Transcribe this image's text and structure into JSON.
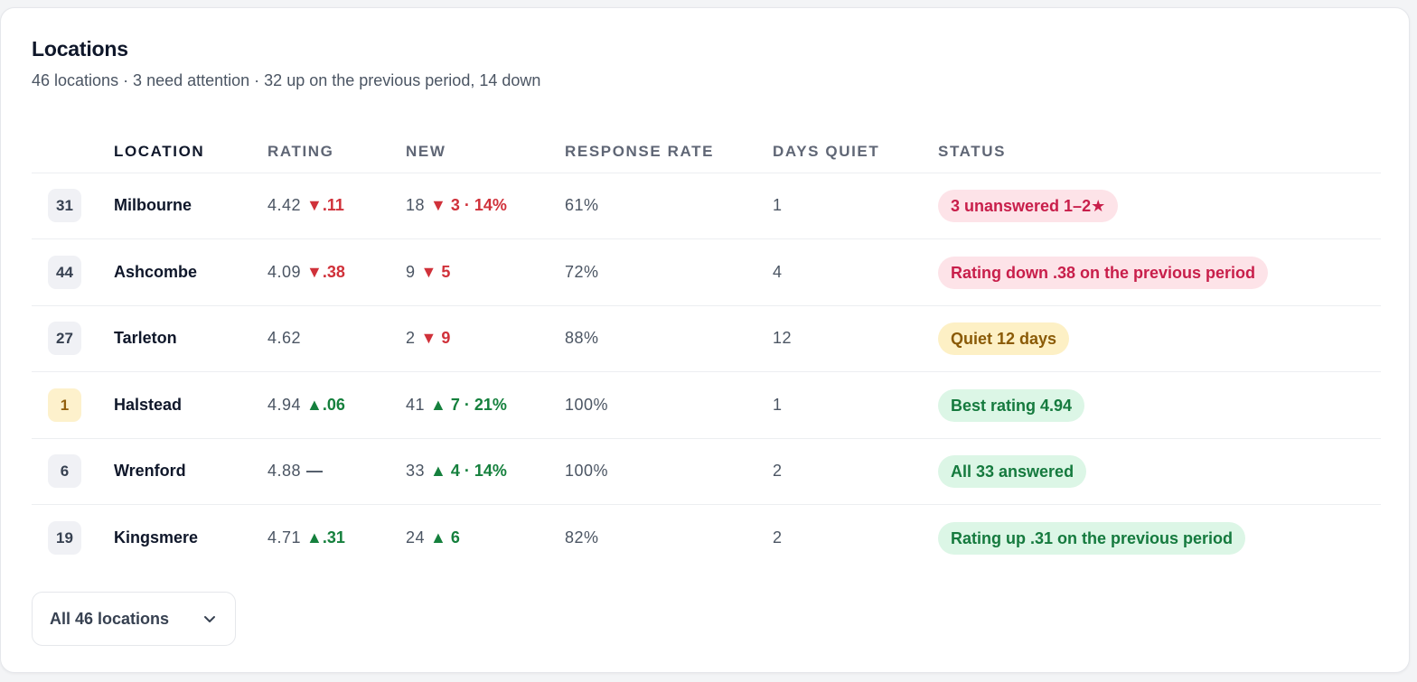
{
  "header": {
    "title": "Locations",
    "subtitle": "46 locations · 3 need attention · 32 up on the previous period, 14 down"
  },
  "columns": [
    "LOCATION",
    "RATING",
    "NEW",
    "RESPONSE RATE",
    "DAYS QUIET",
    "STATUS"
  ],
  "rows": [
    {
      "rank": "31",
      "rank_style": "plain",
      "name": "Milbourne",
      "rating": "4.42",
      "rating_delta": "▼.11",
      "rating_dir": "down",
      "new": "18",
      "new_delta": "▼ 3 · 14%",
      "new_dir": "down",
      "response_rate": "61%",
      "days_quiet": "1",
      "status": "3 unanswered 1–2★",
      "status_tone": "red"
    },
    {
      "rank": "44",
      "rank_style": "plain",
      "name": "Ashcombe",
      "rating": "4.09",
      "rating_delta": "▼.38",
      "rating_dir": "down",
      "new": "9",
      "new_delta": "▼ 5",
      "new_dir": "down",
      "response_rate": "72%",
      "days_quiet": "4",
      "status": "Rating down .38 on the previous period",
      "status_tone": "red"
    },
    {
      "rank": "27",
      "rank_style": "plain",
      "name": "Tarleton",
      "rating": "4.62",
      "rating_delta": "",
      "rating_dir": "none",
      "new": "2",
      "new_delta": "▼ 9",
      "new_dir": "down",
      "response_rate": "88%",
      "days_quiet": "12",
      "status": "Quiet 12 days",
      "status_tone": "amber"
    },
    {
      "rank": "1",
      "rank_style": "gold",
      "name": "Halstead",
      "rating": "4.94",
      "rating_delta": "▲.06",
      "rating_dir": "up",
      "new": "41",
      "new_delta": "▲ 7 · 21%",
      "new_dir": "up",
      "response_rate": "100%",
      "days_quiet": "1",
      "status": "Best rating 4.94",
      "status_tone": "green"
    },
    {
      "rank": "6",
      "rank_style": "plain",
      "name": "Wrenford",
      "rating": "4.88",
      "rating_delta": "—",
      "rating_dir": "flat",
      "new": "33",
      "new_delta": "▲ 4 · 14%",
      "new_dir": "up",
      "response_rate": "100%",
      "days_quiet": "2",
      "status": "All 33 answered",
      "status_tone": "green"
    },
    {
      "rank": "19",
      "rank_style": "plain",
      "name": "Kingsmere",
      "rating": "4.71",
      "rating_delta": "▲.31",
      "rating_dir": "up",
      "new": "24",
      "new_delta": "▲ 6",
      "new_dir": "up",
      "response_rate": "82%",
      "days_quiet": "2",
      "status": "Rating up .31 on the previous period",
      "status_tone": "green"
    }
  ],
  "footer": {
    "button_label": "All 46 locations",
    "button_icon": "chevron-down-icon"
  },
  "colors": {
    "down": "#d0313a",
    "up": "#15803d",
    "badge_red_bg": "#fde3e8",
    "badge_amber_bg": "#fdf0c5",
    "badge_green_bg": "#dcf6e6",
    "rank_gold_bg": "#fdf1cc"
  }
}
